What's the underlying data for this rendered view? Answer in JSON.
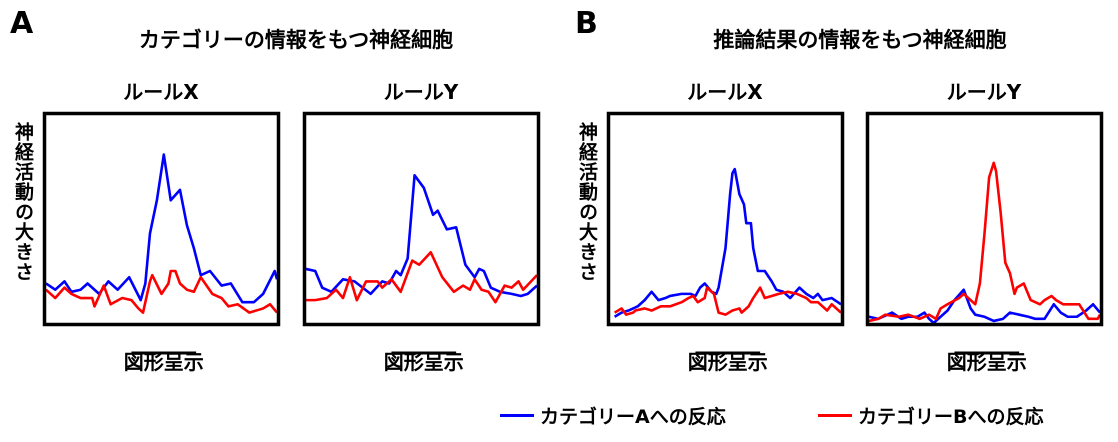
{
  "groups": [
    {
      "letter": "A",
      "title": "カテゴリーの情報をもつ神経細胞"
    },
    {
      "letter": "B",
      "title": "推論結果の情報をもつ神経細胞"
    }
  ],
  "ylabel": "神経活動の大きさ",
  "colors": {
    "categoryA": "#0000ff",
    "categoryB": "#ff0000"
  },
  "legend": [
    {
      "label": "カテゴリーAへの反応",
      "color": "#0000ff"
    },
    {
      "label": "カテゴリーBへの反応",
      "color": "#ff0000"
    }
  ],
  "chart_data": [
    {
      "type": "line",
      "group": "A",
      "title": "ルールX",
      "xlabel": "図形呈示",
      "ylabel": "神経活動の大きさ",
      "xlim": [
        0,
        100
      ],
      "ylim": [
        0,
        100
      ],
      "stimulus": [
        37,
        65
      ],
      "series": [
        {
          "name": "カテゴリーAへの反応",
          "x": [
            0,
            4,
            8,
            11,
            15,
            18,
            23,
            27,
            31,
            36,
            41,
            43,
            45,
            48,
            51,
            54,
            58,
            61,
            64,
            67,
            71,
            76,
            80,
            85,
            90,
            94,
            99,
            100
          ],
          "y": [
            19,
            16,
            20,
            15,
            16,
            19,
            14,
            20,
            16,
            22,
            11,
            19,
            43,
            59,
            81,
            59,
            64,
            47,
            36,
            23,
            25,
            18,
            19,
            10,
            10,
            14,
            25,
            21
          ]
        },
        {
          "name": "カテゴリーBへの反応",
          "x": [
            0,
            4,
            8,
            11,
            15,
            20,
            21,
            25,
            28,
            33,
            37,
            40,
            42,
            45,
            46,
            50,
            53,
            54,
            56,
            58,
            61,
            64,
            67,
            72,
            76,
            79,
            83,
            88,
            94,
            97,
            100
          ],
          "y": [
            16,
            12,
            17,
            14,
            12,
            12,
            8,
            18,
            9,
            12,
            11,
            7,
            5,
            20,
            23,
            14,
            19,
            25,
            25,
            19,
            16,
            15,
            22,
            14,
            12,
            8,
            9,
            5,
            7,
            9,
            5
          ]
        }
      ]
    },
    {
      "type": "line",
      "group": "A",
      "title": "ルールY",
      "xlabel": "図形呈示",
      "ylabel": "神経活動の大きさ",
      "xlim": [
        0,
        100
      ],
      "ylim": [
        0,
        100
      ],
      "stimulus": [
        37,
        65
      ],
      "series": [
        {
          "name": "カテゴリーAへの反応",
          "x": [
            0,
            4,
            7,
            11,
            16,
            21,
            28,
            33,
            36,
            39,
            41,
            44,
            47,
            51,
            55,
            57,
            61,
            65,
            69,
            73,
            75,
            77,
            80,
            84,
            89,
            93,
            96,
            100
          ],
          "y": [
            26,
            25,
            17,
            15,
            21,
            20,
            14,
            20,
            19,
            25,
            23,
            31,
            71,
            65,
            52,
            54,
            45,
            46,
            28,
            22,
            26,
            25,
            17,
            15,
            14,
            13,
            14,
            18
          ]
        },
        {
          "name": "カテゴリーBへの反応",
          "x": [
            0,
            4,
            9,
            13,
            16,
            19,
            22,
            26,
            31,
            33,
            37,
            41,
            46,
            49,
            54,
            59,
            64,
            68,
            71,
            73,
            76,
            79,
            82,
            86,
            89,
            92,
            94,
            100
          ],
          "y": [
            11,
            11,
            12,
            16,
            12,
            22,
            11,
            20,
            20,
            17,
            21,
            15,
            30,
            28,
            34,
            22,
            15,
            18,
            16,
            21,
            16,
            15,
            10,
            18,
            17,
            20,
            16,
            23
          ]
        }
      ]
    },
    {
      "type": "line",
      "group": "B",
      "title": "ルールX",
      "xlabel": "図形呈示",
      "ylabel": "神経活動の大きさ",
      "xlim": [
        0,
        100
      ],
      "ylim": [
        0,
        100
      ],
      "stimulus": [
        37,
        65
      ],
      "series": [
        {
          "name": "カテゴリーAへの反応",
          "x": [
            2,
            5,
            8,
            12,
            15,
            18,
            21,
            24,
            26,
            31,
            35,
            37,
            39,
            41,
            44,
            46,
            47,
            50,
            52,
            53,
            54,
            56,
            58,
            59,
            61,
            62,
            64,
            67,
            70,
            72,
            75,
            78,
            82,
            85,
            88,
            90,
            92,
            96,
            100
          ],
          "y": [
            3,
            5,
            6,
            8,
            11,
            15,
            11,
            12,
            13,
            14,
            14,
            13,
            17,
            19,
            15,
            14,
            17,
            36,
            62,
            72,
            74,
            62,
            57,
            48,
            48,
            36,
            25,
            25,
            20,
            16,
            15,
            12,
            17,
            14,
            12,
            14,
            11,
            12,
            9
          ]
        },
        {
          "name": "カテゴリーBへの反応",
          "x": [
            2,
            5,
            7,
            10,
            11,
            15,
            18,
            22,
            26,
            31,
            34,
            36,
            38,
            41,
            42,
            45,
            47,
            50,
            53,
            56,
            57,
            60,
            62,
            65,
            67,
            70,
            73,
            77,
            81,
            85,
            87,
            90,
            94,
            96,
            100
          ],
          "y": [
            5,
            7,
            4,
            5,
            6,
            7,
            6,
            8,
            8,
            10,
            12,
            13,
            10,
            12,
            17,
            14,
            5,
            4,
            6,
            7,
            5,
            8,
            12,
            17,
            12,
            13,
            14,
            15,
            14,
            12,
            10,
            10,
            6,
            9,
            5
          ]
        }
      ]
    },
    {
      "type": "line",
      "group": "B",
      "title": "ルールY",
      "xlabel": "図形呈示",
      "ylabel": "神経活動の大きさ",
      "xlim": [
        0,
        100
      ],
      "ylim": [
        0,
        100
      ],
      "stimulus": [
        37,
        65
      ],
      "series": [
        {
          "name": "カテゴリーAへの反応",
          "x": [
            0,
            4,
            10,
            14,
            17,
            21,
            24,
            26,
            28,
            30,
            34,
            37,
            41,
            44,
            46,
            50,
            54,
            58,
            61,
            65,
            69,
            72,
            76,
            80,
            83,
            86,
            90,
            94,
            97,
            100
          ],
          "y": [
            3,
            2,
            5,
            2,
            3,
            3,
            5,
            2,
            0,
            2,
            6,
            11,
            16,
            7,
            4,
            3,
            1,
            2,
            5,
            4,
            3,
            2,
            2,
            9,
            5,
            3,
            3,
            6,
            9,
            5
          ]
        },
        {
          "name": "カテゴリーBへの反応",
          "x": [
            0,
            4,
            7,
            13,
            17,
            22,
            26,
            29,
            31,
            34,
            39,
            41,
            46,
            48,
            50,
            52,
            54,
            55,
            57,
            59,
            61,
            63,
            64,
            67,
            70,
            74,
            76,
            79,
            81,
            84,
            87,
            91,
            95,
            99,
            100
          ],
          "y": [
            1,
            2,
            4,
            3,
            4,
            2,
            4,
            2,
            7,
            9,
            12,
            14,
            9,
            19,
            43,
            70,
            77,
            73,
            53,
            29,
            24,
            14,
            17,
            19,
            11,
            9,
            11,
            13,
            11,
            9,
            9,
            9,
            2,
            2,
            4
          ]
        }
      ]
    }
  ]
}
